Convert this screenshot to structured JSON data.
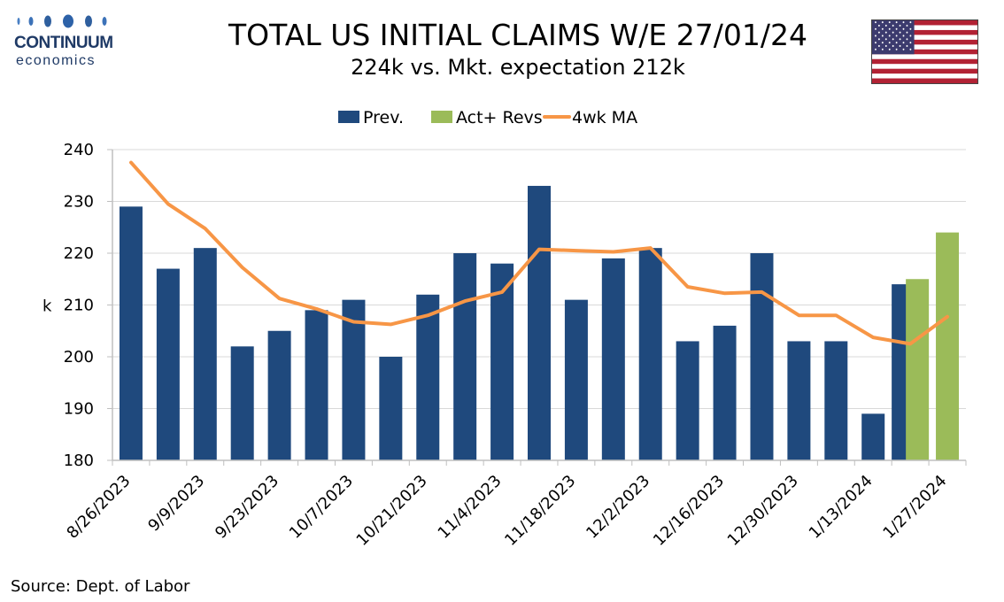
{
  "logo": {
    "brand": "CONTINUUM",
    "sub": "economics"
  },
  "header": {
    "title": "TOTAL US INITIAL CLAIMS W/E 27/01/24",
    "subtitle": "224k vs. Mkt. expectation 212k"
  },
  "source": "Source: Dept. of Labor",
  "colors": {
    "prev": "#1f497d",
    "act": "#9bbb59",
    "ma": "#f79646",
    "grid": "#d9d9d9",
    "axis": "#bfbfbf"
  },
  "icons": {
    "logo": "continuum-dots-logo",
    "flag": "us-flag-icon"
  },
  "chart_data": {
    "type": "bar",
    "ylabel": "k",
    "ylim": [
      180,
      240
    ],
    "yticks": [
      180,
      190,
      200,
      210,
      220,
      230,
      240
    ],
    "grid": true,
    "legend_position": "top-center",
    "categories": [
      "8/26/2023",
      "9/2/2023",
      "9/9/2023",
      "9/16/2023",
      "9/23/2023",
      "9/30/2023",
      "10/7/2023",
      "10/14/2023",
      "10/21/2023",
      "10/28/2023",
      "11/4/2023",
      "11/11/2023",
      "11/18/2023",
      "11/25/2023",
      "12/2/2023",
      "12/9/2023",
      "12/16/2023",
      "12/23/2023",
      "12/30/2023",
      "1/6/2024",
      "1/13/2024",
      "1/20/2024",
      "1/27/2024"
    ],
    "tick_labels": [
      "8/26/2023",
      "9/9/2023",
      "9/23/2023",
      "10/7/2023",
      "10/21/2023",
      "11/4/2023",
      "11/18/2023",
      "12/2/2023",
      "12/16/2023",
      "12/30/2023",
      "1/13/2024",
      "1/27/2024"
    ],
    "series": [
      {
        "name": "Prev.",
        "type": "bar",
        "values": [
          229,
          217,
          221,
          202,
          205,
          209,
          211,
          200,
          212,
          220,
          218,
          233,
          211,
          219,
          221,
          203,
          206,
          220,
          203,
          203,
          189,
          214,
          null
        ]
      },
      {
        "name": "Act+ Revs",
        "type": "bar",
        "values": [
          null,
          null,
          null,
          null,
          null,
          null,
          null,
          null,
          null,
          null,
          null,
          null,
          null,
          null,
          null,
          null,
          null,
          null,
          null,
          null,
          null,
          215,
          224
        ]
      },
      {
        "name": "4wk MA",
        "type": "line",
        "values": [
          237.5,
          229.5,
          224.75,
          217.25,
          211.25,
          209.25,
          206.75,
          206.25,
          208,
          210.75,
          212.5,
          220.75,
          220.5,
          220.25,
          221,
          213.5,
          212.25,
          212.5,
          208,
          208,
          203.75,
          202.5,
          207.75
        ]
      }
    ]
  }
}
